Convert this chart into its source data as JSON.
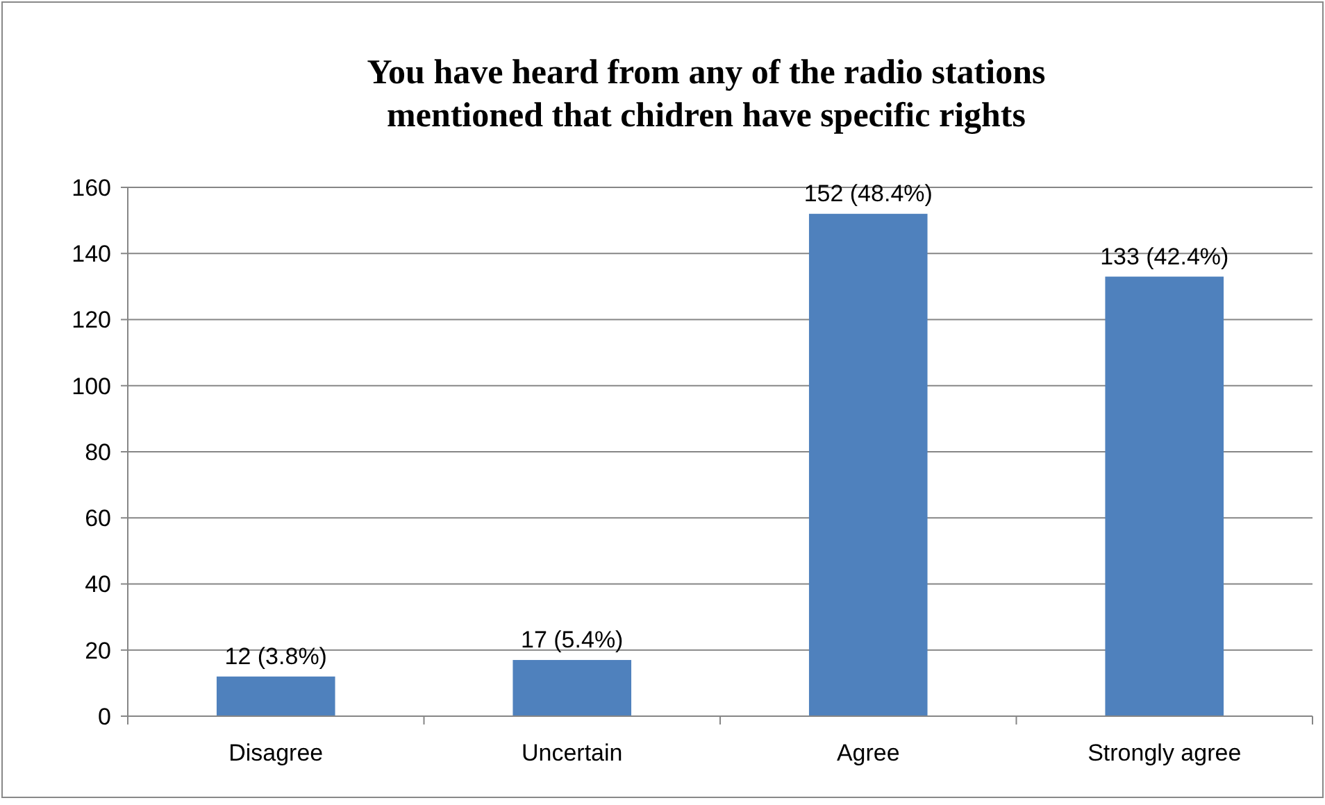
{
  "chart_data": {
    "type": "bar",
    "title": "You have heard from any of the radio stations mentioned that chidren have specific rights",
    "categories": [
      "Disagree",
      "Uncertain",
      "Agree",
      "Strongly agree"
    ],
    "values": [
      12,
      17,
      152,
      133
    ],
    "value_labels": [
      "12 (3.8%)",
      "17 (5.4%)",
      "152 (48.4%)",
      "133 (42.4%)"
    ],
    "color": "#4f81bd",
    "ylim": [
      0,
      160
    ],
    "yticks": [
      0,
      20,
      40,
      60,
      80,
      100,
      120,
      140,
      160
    ],
    "grid": "y"
  }
}
